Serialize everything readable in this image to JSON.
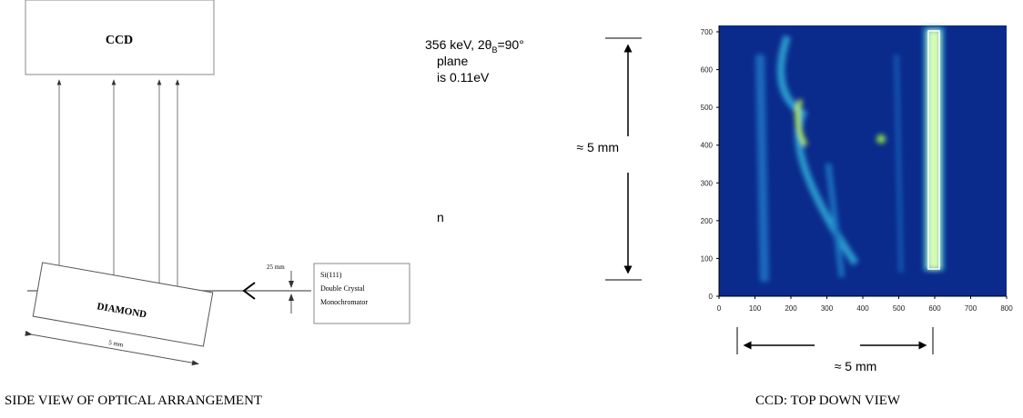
{
  "side_view": {
    "ccd_label": "CCD",
    "crystal_label": "DIAMOND",
    "crystal_width": "5 mm",
    "gap_label": "25 mm",
    "monochromator": [
      "Si(111)",
      "Double Crystal",
      "Monochromator"
    ],
    "caption": "SIDE VIEW OF OPTICAL ARRANGEMENT"
  },
  "notes": {
    "energy": "356 keV, 2θ",
    "energy_sub": "B",
    "energy_end": "=90°",
    "line2": "plane",
    "line3": "is 0.11eV",
    "line4": "n"
  },
  "ccd_image": {
    "x_ticks": [
      "0",
      "100",
      "200",
      "300",
      "400",
      "500",
      "600",
      "700",
      "800"
    ],
    "y_ticks": [
      "0",
      "100",
      "200",
      "300",
      "400",
      "500",
      "600",
      "700"
    ],
    "height_label": "≈ 5 mm",
    "width_label": "≈ 5 mm",
    "caption": "CCD: TOP DOWN VIEW"
  }
}
